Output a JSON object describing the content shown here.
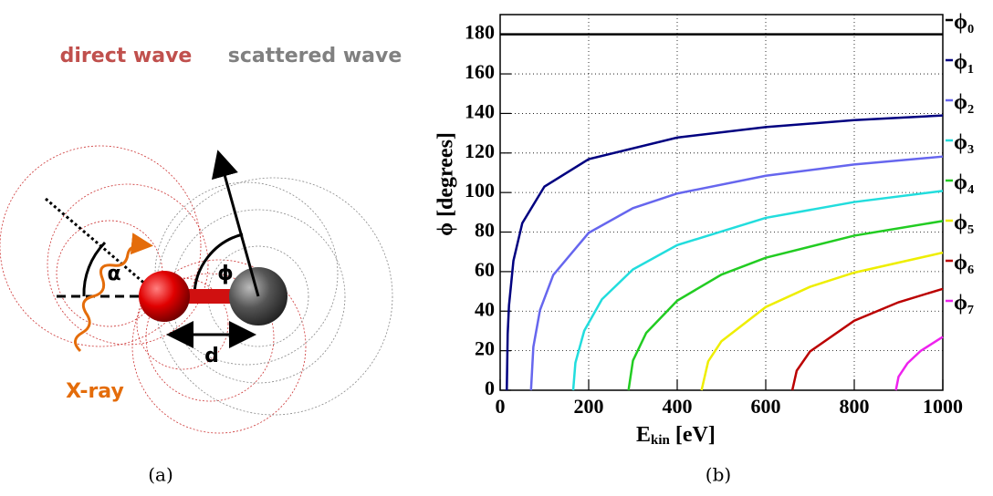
{
  "diagram": {
    "direct_wave": "direct wave",
    "scattered_wave": "scattered wave",
    "alpha": "α",
    "phi": "ϕ",
    "d": "d",
    "xray": "X-ray"
  },
  "captions": {
    "a": "(a)",
    "b": "(b)"
  },
  "chart_data": {
    "type": "line",
    "x_label": {
      "main": "E",
      "sub": "kin",
      "unit": " [eV]"
    },
    "y_label": "ϕ [degrees]",
    "xlim": [
      0,
      1000
    ],
    "xticks": [
      0,
      200,
      400,
      600,
      800,
      1000
    ],
    "ylim": [
      0,
      190
    ],
    "yticks": [
      0,
      20,
      40,
      60,
      80,
      100,
      120,
      140,
      160,
      180
    ],
    "grid": true,
    "legend": "right",
    "series": [
      {
        "name": "ϕ₀",
        "color": "#000000",
        "x": [
          0,
          1000
        ],
        "values": [
          180,
          180
        ]
      },
      {
        "name": "ϕ₁",
        "color": "#000080",
        "x": [
          15,
          17,
          20,
          30,
          50,
          100,
          200,
          400,
          600,
          800,
          1000
        ],
        "values": [
          0,
          28.4,
          42.9,
          65.5,
          84.5,
          103,
          116.9,
          127.8,
          133.1,
          136.6,
          139
        ]
      },
      {
        "name": "ϕ₂",
        "color": "#6666ee",
        "x": [
          69.7,
          75,
          90,
          120,
          200,
          300,
          400,
          600,
          800,
          1000
        ],
        "values": [
          0,
          21.9,
          40.5,
          58.3,
          79.6,
          92.1,
          99.5,
          108.5,
          114.2,
          118.2
        ]
      },
      {
        "name": "ϕ₃",
        "color": "#22dddd",
        "x": [
          165,
          170,
          190,
          230,
          300,
          400,
          600,
          800,
          1000
        ],
        "values": [
          0,
          13.9,
          30.1,
          46,
          61.1,
          73.4,
          87.2,
          95.2,
          100.8
        ]
      },
      {
        "name": "ϕ₄",
        "color": "#22cc22",
        "x": [
          290,
          300,
          330,
          400,
          500,
          600,
          800,
          1000
        ],
        "values": [
          0,
          15,
          29,
          45.3,
          58.5,
          67,
          78.2,
          85.6
        ]
      },
      {
        "name": "ϕ₅",
        "color": "#eeee00",
        "x": [
          455,
          470,
          500,
          600,
          700,
          800,
          1000
        ],
        "values": [
          0,
          14.6,
          24.8,
          42.1,
          52.3,
          59.5,
          69.6
        ]
      },
      {
        "name": "ϕ₆",
        "color": "#bb0000",
        "x": [
          660,
          670,
          700,
          800,
          900,
          1000
        ],
        "values": [
          0,
          9.9,
          19.6,
          35.2,
          44.5,
          51.3
        ]
      },
      {
        "name": "ϕ₇",
        "color": "#ee22ee",
        "x": [
          894,
          900,
          920,
          950,
          1000
        ],
        "values": [
          0,
          6.8,
          13.6,
          19.9,
          27
        ]
      }
    ]
  }
}
